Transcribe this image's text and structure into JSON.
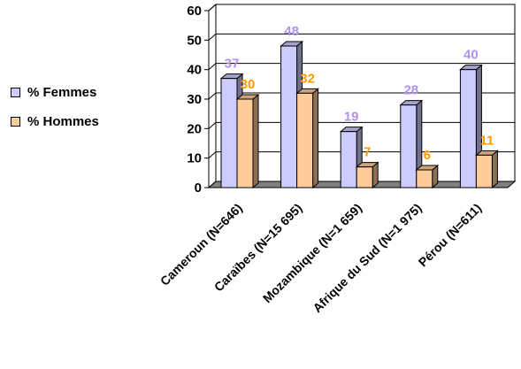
{
  "chart_data": {
    "type": "bar",
    "categories": [
      "Cameroun (N=646)",
      "Caraïbes  (N=15 695)",
      "Mozambique (N=1 659)",
      "Afrique du Sud (N=1 975)",
      "Pérou  (N=611)"
    ],
    "series": [
      {
        "name": "% Femmes",
        "values": [
          37,
          48,
          19,
          28,
          40
        ],
        "color": "#ccccff",
        "label_color": "#b28ff2"
      },
      {
        "name": "% Hommes",
        "values": [
          30,
          32,
          7,
          6,
          11
        ],
        "color": "#ffcc99",
        "label_color": "#ff9900"
      }
    ],
    "y_ticks": [
      "0",
      "10",
      "20",
      "30",
      "40",
      "50",
      "60"
    ],
    "ylim": [
      0,
      60
    ],
    "grid": true,
    "legend_position": "left",
    "title": "",
    "xlabel": "",
    "ylabel": ""
  }
}
